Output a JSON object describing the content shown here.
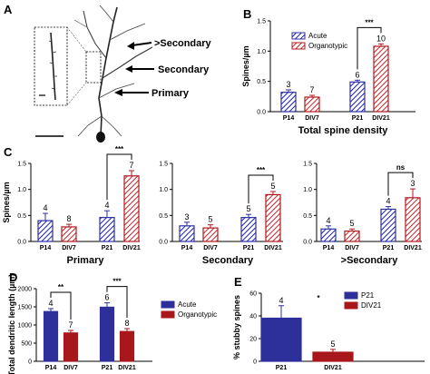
{
  "colors": {
    "acute": "#2c2fa8",
    "organo": "#b0191e",
    "acute_hatch": "#1c1fb5",
    "organo_hatch": "#c8242a",
    "solid_acute": "#2d2f9b",
    "solid_organo": "#a8171c"
  },
  "panelA": {
    "label": "A",
    "annotations": [
      ">Secondary",
      "Secondary",
      "Primary"
    ]
  },
  "chart_data": [
    {
      "id": "B",
      "label": "B",
      "type": "bar",
      "title": "Total spine density",
      "ylabel": "Spines/µm",
      "ylim": [
        0,
        1.5
      ],
      "yticks": [
        "0.0",
        "0.5",
        "1.0",
        "1.5"
      ],
      "categories": [
        "P14",
        "DIV7",
        "P21",
        "DIV21"
      ],
      "values": [
        0.32,
        0.24,
        0.49,
        1.08
      ],
      "errors": [
        0.04,
        0.03,
        0.03,
        0.04
      ],
      "n": [
        "3",
        "7",
        "6",
        "10"
      ],
      "groups": [
        "acute",
        "organo",
        "acute",
        "organo"
      ],
      "legend": [
        "Acute",
        "Organotypic"
      ],
      "sig": "***",
      "hatched": true
    },
    {
      "id": "C1",
      "label": "C",
      "type": "bar",
      "title": "Primary",
      "ylabel": "Spines/µm",
      "ylim": [
        0,
        1.5
      ],
      "yticks": [
        "0.0",
        "0.5",
        "1.0",
        "1.5"
      ],
      "categories": [
        "P14",
        "DIV7",
        "P21",
        "DIV21"
      ],
      "values": [
        0.4,
        0.28,
        0.46,
        1.26
      ],
      "errors": [
        0.14,
        0.05,
        0.13,
        0.1
      ],
      "n": [
        "4",
        "8",
        "4",
        "7"
      ],
      "groups": [
        "acute",
        "organo",
        "acute",
        "organo"
      ],
      "sig": "***",
      "hatched": true
    },
    {
      "id": "C2",
      "type": "bar",
      "title": "Secondary",
      "ylim": [
        0,
        1.5
      ],
      "yticks": [
        "0.0",
        "0.5",
        "1.0",
        "1.5"
      ],
      "categories": [
        "P14",
        "DIV7",
        "P21",
        "DIV21"
      ],
      "values": [
        0.3,
        0.26,
        0.46,
        0.9
      ],
      "errors": [
        0.07,
        0.06,
        0.06,
        0.06
      ],
      "n": [
        "3",
        "5",
        "5",
        "5"
      ],
      "groups": [
        "acute",
        "organo",
        "acute",
        "organo"
      ],
      "sig": "***",
      "hatched": true
    },
    {
      "id": "C3",
      "type": "bar",
      "title": ">Secondary",
      "ylim": [
        0,
        1.5
      ],
      "yticks": [
        "0.0",
        "0.5",
        "1.0",
        "1.5"
      ],
      "categories": [
        "P14",
        "DIV7",
        "P21",
        "DIV21"
      ],
      "values": [
        0.24,
        0.2,
        0.62,
        0.84
      ],
      "errors": [
        0.06,
        0.04,
        0.05,
        0.17
      ],
      "n": [
        "4",
        "5",
        "4",
        "3"
      ],
      "groups": [
        "acute",
        "organo",
        "acute",
        "organo"
      ],
      "sig": "ns",
      "hatched": true
    },
    {
      "id": "D",
      "label": "D",
      "type": "bar",
      "ylabel": "Total dendritic length (µm)",
      "ylim": [
        0,
        2000
      ],
      "yticks": [
        "0",
        "500",
        "1000",
        "1500",
        "2000"
      ],
      "categories": [
        "P14",
        "DIV7",
        "P21",
        "DIV21"
      ],
      "values": [
        1370,
        780,
        1490,
        820
      ],
      "errors": [
        80,
        70,
        120,
        80
      ],
      "n": [
        "4",
        "7",
        "6",
        "8"
      ],
      "groups": [
        "acute",
        "organo",
        "acute",
        "organo"
      ],
      "sig": [
        "**",
        "***"
      ],
      "legend": [
        "Acute",
        "Organotypic"
      ],
      "hatched": false
    },
    {
      "id": "E",
      "label": "E",
      "type": "bar",
      "ylabel": "% stubby spines",
      "ylim": [
        0,
        60
      ],
      "yticks": [
        "0",
        "20",
        "40",
        "60"
      ],
      "categories": [
        "P21",
        "DIV21"
      ],
      "values": [
        38,
        8
      ],
      "errors": [
        11,
        2.5
      ],
      "n": [
        "4",
        "5"
      ],
      "groups": [
        "acute",
        "organo"
      ],
      "sig": "*",
      "legend": [
        "P21",
        "DIV21"
      ],
      "hatched": false
    }
  ]
}
